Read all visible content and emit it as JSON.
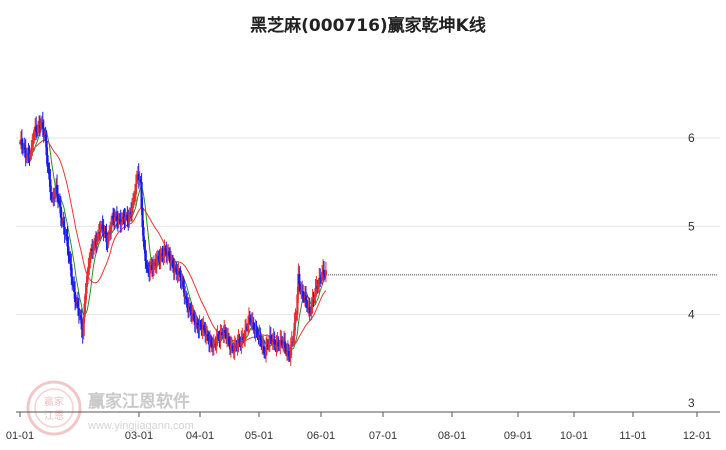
{
  "chart_data": {
    "type": "candlestick",
    "title": "黑芝麻(000716)赢家乾坤K线",
    "x_ticks": [
      "01-01",
      "03-01",
      "04-01",
      "05-01",
      "06-01",
      "07-01",
      "08-01",
      "09-01",
      "10-01",
      "11-01",
      "12-01"
    ],
    "y_ticks": [
      "6",
      "5",
      "4",
      "3"
    ],
    "ylim": [
      3,
      7
    ],
    "grid": true,
    "last_price": 4.45,
    "series": [
      {
        "name": "",
        "color": "#e03030",
        "role": "up candles"
      },
      {
        "name": "",
        "color": "#1a1aee",
        "role": "down candles"
      },
      {
        "name": "",
        "color": "#8a2b9c",
        "role": "neutral candles"
      },
      {
        "name": "",
        "color": "#2e8b2e",
        "role": "short moving average"
      },
      {
        "name": "",
        "color": "#ee3333",
        "role": "long moving average"
      }
    ],
    "price_anchors": [
      [
        0,
        5.95
      ],
      [
        6,
        5.8
      ],
      [
        12,
        5.85
      ],
      [
        15,
        6.05
      ],
      [
        18,
        6.1
      ],
      [
        22,
        6.2
      ],
      [
        26,
        6.0
      ],
      [
        30,
        5.6
      ],
      [
        34,
        5.3
      ],
      [
        38,
        5.4
      ],
      [
        44,
        5.1
      ],
      [
        48,
        4.9
      ],
      [
        52,
        4.6
      ],
      [
        58,
        4.2
      ],
      [
        62,
        4.0
      ],
      [
        66,
        3.8
      ],
      [
        69,
        4.3
      ],
      [
        73,
        4.6
      ],
      [
        78,
        4.8
      ],
      [
        84,
        4.95
      ],
      [
        88,
        4.95
      ],
      [
        92,
        4.85
      ],
      [
        97,
        5.05
      ],
      [
        102,
        5.1
      ],
      [
        108,
        5.05
      ],
      [
        114,
        5.1
      ],
      [
        120,
        5.3
      ],
      [
        124,
        5.6
      ],
      [
        127,
        5.5
      ],
      [
        130,
        4.8
      ],
      [
        134,
        4.45
      ],
      [
        138,
        4.55
      ],
      [
        146,
        4.6
      ],
      [
        152,
        4.75
      ],
      [
        158,
        4.6
      ],
      [
        165,
        4.5
      ],
      [
        172,
        4.3
      ],
      [
        178,
        4.05
      ],
      [
        182,
        3.95
      ],
      [
        190,
        3.85
      ],
      [
        198,
        3.75
      ],
      [
        204,
        3.6
      ],
      [
        208,
        3.75
      ],
      [
        213,
        3.8
      ],
      [
        219,
        3.7
      ],
      [
        226,
        3.6
      ],
      [
        231,
        3.68
      ],
      [
        237,
        3.8
      ],
      [
        243,
        3.95
      ],
      [
        247,
        3.85
      ],
      [
        252,
        3.7
      ],
      [
        257,
        3.6
      ],
      [
        263,
        3.7
      ],
      [
        270,
        3.68
      ],
      [
        278,
        3.65
      ],
      [
        284,
        3.55
      ],
      [
        288,
        3.75
      ],
      [
        291,
        4.05
      ],
      [
        293,
        4.45
      ],
      [
        296,
        4.25
      ],
      [
        300,
        4.15
      ],
      [
        305,
        4.05
      ],
      [
        310,
        4.2
      ],
      [
        314,
        4.35
      ],
      [
        318,
        4.5
      ],
      [
        322,
        4.45
      ]
    ],
    "candle_count": 323
  },
  "watermark": {
    "text": "赢家江恩软件",
    "subtext": "www.yingjiagann.com",
    "seal_top": "赢家",
    "seal_bottom": "江恩"
  },
  "colors": {
    "up": "#e03030",
    "down": "#1a1aee",
    "neutral": "#8a2b9c",
    "ma_short": "#2e8b2e",
    "ma_long": "#ee3333",
    "grid": "#e6e6e6",
    "axis": "#555555",
    "last_price_line": "#333333"
  }
}
